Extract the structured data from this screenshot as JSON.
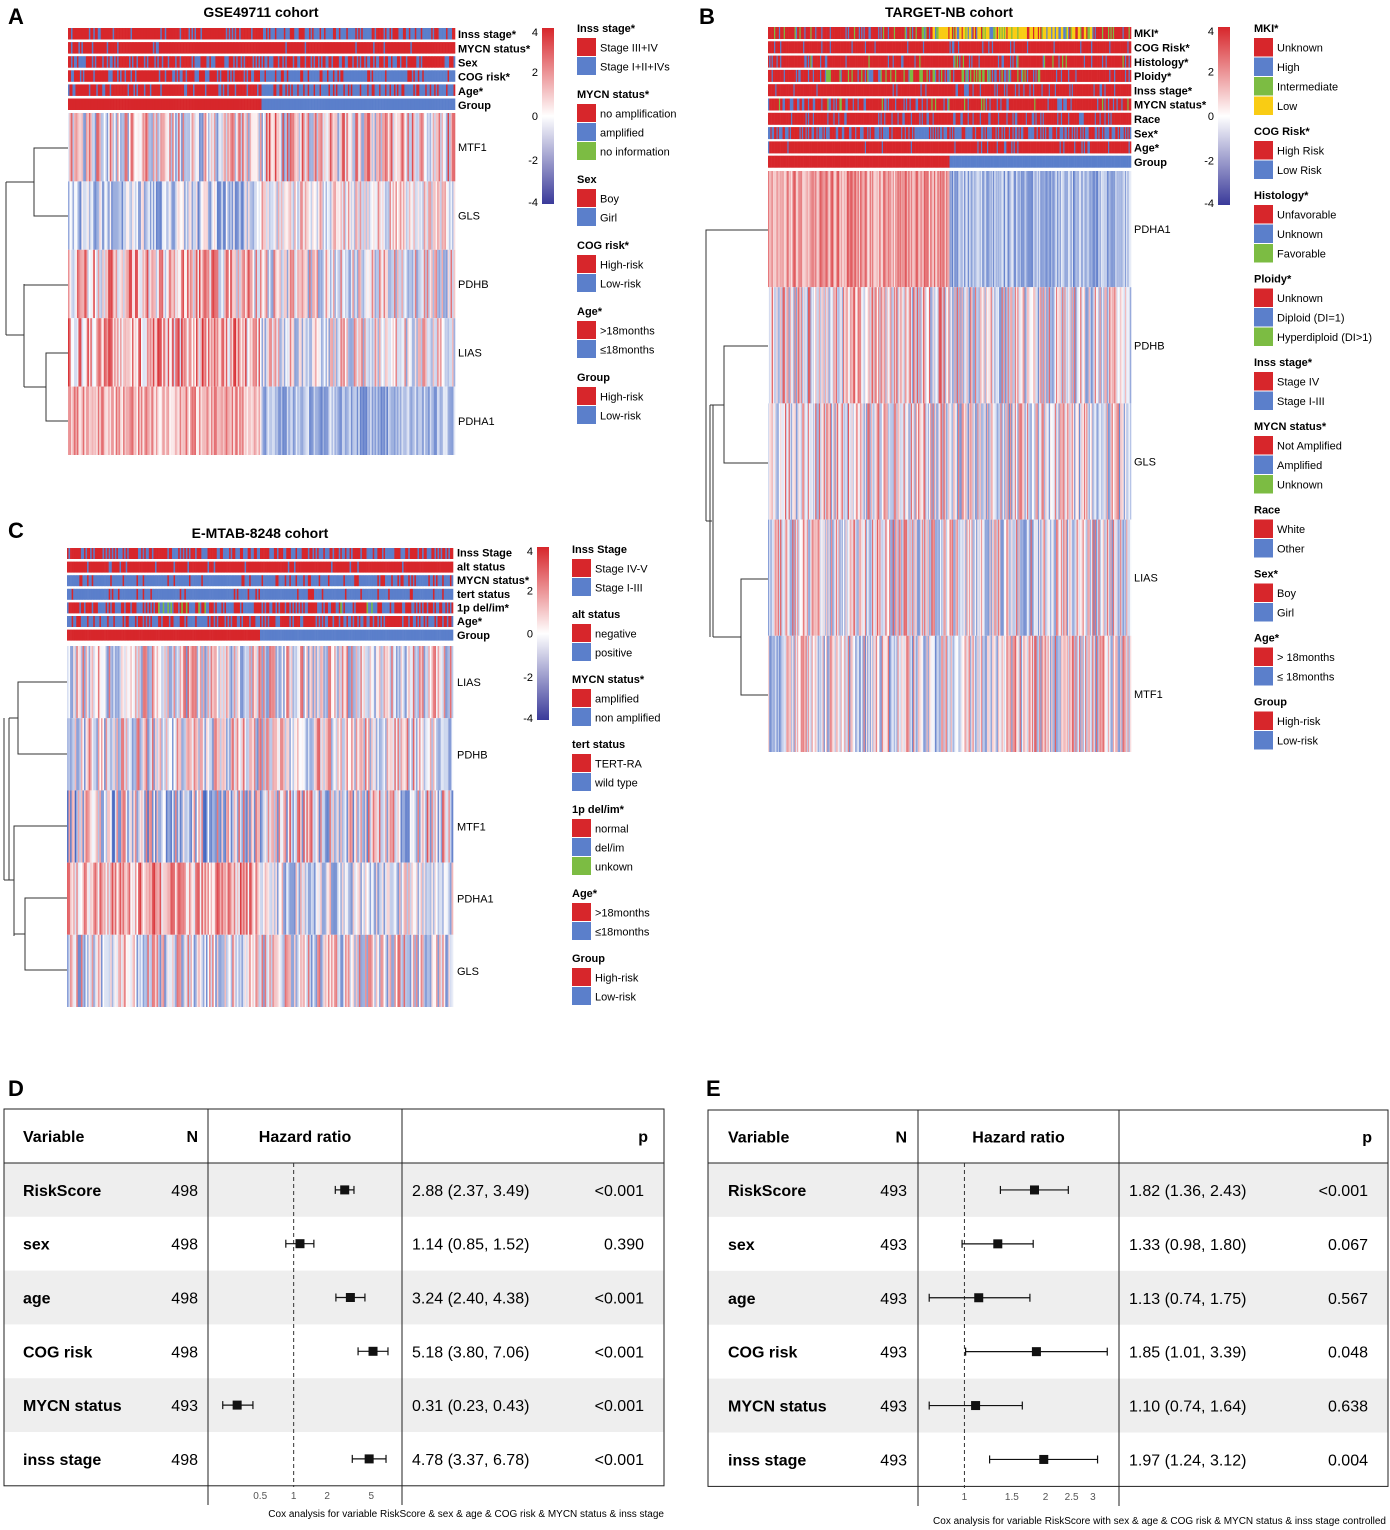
{
  "panels": {
    "A": {
      "letter": "A",
      "title": "GSE49711 cohort",
      "annotations": [
        "Inss stage*",
        "MYCN status*",
        "Sex",
        "COG risk*",
        "Age*",
        "Group"
      ],
      "genes": [
        "MTF1",
        "GLS",
        "PDHB",
        "LIAS",
        "PDHA1"
      ],
      "scale_ticks": [
        "4",
        "2",
        "0",
        "-2",
        "-4"
      ],
      "legend": [
        {
          "title": "Inss stage*",
          "items": [
            {
              "label": "Stage III+IV",
              "color": "#d7262b"
            },
            {
              "label": "Stage I+II+IVs",
              "color": "#5b7fcb"
            }
          ]
        },
        {
          "title": "MYCN status*",
          "items": [
            {
              "label": "no amplification",
              "color": "#d7262b"
            },
            {
              "label": "amplified",
              "color": "#5b7fcb"
            },
            {
              "label": "no information",
              "color": "#7cbc43"
            }
          ]
        },
        {
          "title": "Sex",
          "items": [
            {
              "label": "Boy",
              "color": "#d7262b"
            },
            {
              "label": "Girl",
              "color": "#5b7fcb"
            }
          ]
        },
        {
          "title": "COG risk*",
          "items": [
            {
              "label": "High-risk",
              "color": "#d7262b"
            },
            {
              "label": "Low-risk",
              "color": "#5b7fcb"
            }
          ]
        },
        {
          "title": "Age*",
          "items": [
            {
              "label": ">18months",
              "color": "#d7262b"
            },
            {
              "label": "≤18months",
              "color": "#5b7fcb"
            }
          ]
        },
        {
          "title": "Group",
          "items": [
            {
              "label": "High-risk",
              "color": "#d7262b"
            },
            {
              "label": "Low-risk",
              "color": "#5b7fcb"
            }
          ]
        }
      ]
    },
    "B": {
      "letter": "B",
      "title": "TARGET-NB cohort",
      "annotations": [
        "MKI*",
        "COG Risk*",
        "Histology*",
        "Ploidy*",
        "Inss stage*",
        "MYCN status*",
        "Race",
        "Sex*",
        "Age*",
        "Group"
      ],
      "genes": [
        "PDHA1",
        "PDHB",
        "GLS",
        "LIAS",
        "MTF1"
      ],
      "scale_ticks": [
        "4",
        "2",
        "0",
        "-2",
        "-4"
      ],
      "legend": [
        {
          "title": "MKI*",
          "items": [
            {
              "label": "Unknown",
              "color": "#d7262b"
            },
            {
              "label": "High",
              "color": "#5b7fcb"
            },
            {
              "label": "Intermediate",
              "color": "#7cbc43"
            },
            {
              "label": "Low",
              "color": "#f9cc14"
            }
          ]
        },
        {
          "title": "COG Risk*",
          "items": [
            {
              "label": "High Risk",
              "color": "#d7262b"
            },
            {
              "label": "Low Risk",
              "color": "#5b7fcb"
            }
          ]
        },
        {
          "title": "Histology*",
          "items": [
            {
              "label": "Unfavorable",
              "color": "#d7262b"
            },
            {
              "label": "Unknown",
              "color": "#5b7fcb"
            },
            {
              "label": "Favorable",
              "color": "#7cbc43"
            }
          ]
        },
        {
          "title": "Ploidy*",
          "items": [
            {
              "label": "Unknown",
              "color": "#d7262b"
            },
            {
              "label": "Diploid (DI=1)",
              "color": "#5b7fcb"
            },
            {
              "label": "Hyperdiploid (DI>1)",
              "color": "#7cbc43"
            }
          ]
        },
        {
          "title": "Inss stage*",
          "items": [
            {
              "label": "Stage IV",
              "color": "#d7262b"
            },
            {
              "label": "Stage I-III",
              "color": "#5b7fcb"
            }
          ]
        },
        {
          "title": "MYCN status*",
          "items": [
            {
              "label": "Not Amplified",
              "color": "#d7262b"
            },
            {
              "label": "Amplified",
              "color": "#5b7fcb"
            },
            {
              "label": "Unknown",
              "color": "#7cbc43"
            }
          ]
        },
        {
          "title": "Race",
          "items": [
            {
              "label": "White",
              "color": "#d7262b"
            },
            {
              "label": "Other",
              "color": "#5b7fcb"
            }
          ]
        },
        {
          "title": "Sex*",
          "items": [
            {
              "label": "Boy",
              "color": "#d7262b"
            },
            {
              "label": "Girl",
              "color": "#5b7fcb"
            }
          ]
        },
        {
          "title": "Age*",
          "items": [
            {
              "label": "> 18months",
              "color": "#d7262b"
            },
            {
              "label": "≤ 18months",
              "color": "#5b7fcb"
            }
          ]
        },
        {
          "title": "Group",
          "items": [
            {
              "label": "High-risk",
              "color": "#d7262b"
            },
            {
              "label": "Low-risk",
              "color": "#5b7fcb"
            }
          ]
        }
      ]
    },
    "C": {
      "letter": "C",
      "title": "E-MTAB-8248 cohort",
      "annotations": [
        "Inss Stage",
        "alt status",
        "MYCN status*",
        "tert status",
        "1p del/im*",
        "Age*",
        "Group"
      ],
      "genes": [
        "LIAS",
        "PDHB",
        "MTF1",
        "PDHA1",
        "GLS"
      ],
      "scale_ticks": [
        "4",
        "2",
        "0",
        "-2",
        "-4"
      ],
      "legend": [
        {
          "title": "Inss Stage",
          "items": [
            {
              "label": "Stage IV-V",
              "color": "#d7262b"
            },
            {
              "label": "Stage I-III",
              "color": "#5b7fcb"
            }
          ]
        },
        {
          "title": "alt status",
          "items": [
            {
              "label": "negative",
              "color": "#d7262b"
            },
            {
              "label": "positive",
              "color": "#5b7fcb"
            }
          ]
        },
        {
          "title": "MYCN status*",
          "items": [
            {
              "label": "amplified",
              "color": "#d7262b"
            },
            {
              "label": "non amplified",
              "color": "#5b7fcb"
            }
          ]
        },
        {
          "title": "tert status",
          "items": [
            {
              "label": "TERT-RA",
              "color": "#d7262b"
            },
            {
              "label": "wild type",
              "color": "#5b7fcb"
            }
          ]
        },
        {
          "title": "1p del/im*",
          "items": [
            {
              "label": "normal",
              "color": "#d7262b"
            },
            {
              "label": "del/im",
              "color": "#5b7fcb"
            },
            {
              "label": "unkown",
              "color": "#7cbc43"
            }
          ]
        },
        {
          "title": "Age*",
          "items": [
            {
              "label": ">18months",
              "color": "#d7262b"
            },
            {
              "label": "≤18months",
              "color": "#5b7fcb"
            }
          ]
        },
        {
          "title": "Group",
          "items": [
            {
              "label": "High-risk",
              "color": "#d7262b"
            },
            {
              "label": "Low-risk",
              "color": "#5b7fcb"
            }
          ]
        }
      ]
    }
  },
  "chart_data": [
    {
      "type": "forest",
      "panel": "D",
      "headers": {
        "variable": "Variable",
        "n": "N",
        "hr": "Hazard ratio",
        "p": "p"
      },
      "scale": "log",
      "xlim": [
        0.2,
        8
      ],
      "reference_line": 1,
      "ticks": [
        0.5,
        1,
        2,
        5
      ],
      "tick_labels": [
        "0.5",
        "1",
        "2",
        "5"
      ],
      "caption": "Cox analysis for variable RiskScore & sex & age & COG risk & MYCN status & inss stage",
      "rows": [
        {
          "variable": "RiskScore",
          "n": "498",
          "hr": 2.88,
          "lo": 2.37,
          "hi": 3.49,
          "ci_text": "2.88 (2.37, 3.49)",
          "p": "<0.001"
        },
        {
          "variable": "sex",
          "n": "498",
          "hr": 1.14,
          "lo": 0.85,
          "hi": 1.52,
          "ci_text": "1.14 (0.85, 1.52)",
          "p": "0.390"
        },
        {
          "variable": "age",
          "n": "498",
          "hr": 3.24,
          "lo": 2.4,
          "hi": 4.38,
          "ci_text": "3.24 (2.40, 4.38)",
          "p": "<0.001"
        },
        {
          "variable": "COG risk",
          "n": "498",
          "hr": 5.18,
          "lo": 3.8,
          "hi": 7.06,
          "ci_text": "5.18 (3.80, 7.06)",
          "p": "<0.001"
        },
        {
          "variable": "MYCN status",
          "n": "493",
          "hr": 0.31,
          "lo": 0.23,
          "hi": 0.43,
          "ci_text": "0.31 (0.23, 0.43)",
          "p": "<0.001"
        },
        {
          "variable": "inss stage",
          "n": "498",
          "hr": 4.78,
          "lo": 3.37,
          "hi": 6.78,
          "ci_text": "4.78 (3.37, 6.78)",
          "p": "<0.001"
        }
      ]
    },
    {
      "type": "forest",
      "panel": "E",
      "headers": {
        "variable": "Variable",
        "n": "N",
        "hr": "Hazard ratio",
        "p": "p"
      },
      "scale": "log",
      "xlim": [
        0.72,
        3.5
      ],
      "reference_line": 1,
      "ticks": [
        1,
        1.5,
        2,
        2.5,
        3
      ],
      "tick_labels": [
        "1",
        "1.5",
        "2",
        "2.5",
        "3"
      ],
      "caption": "Cox analysis for variable RiskScore with sex & age & COG risk & MYCN status & inss stage controlled",
      "rows": [
        {
          "variable": "RiskScore",
          "n": "493",
          "hr": 1.82,
          "lo": 1.36,
          "hi": 2.43,
          "ci_text": "1.82 (1.36, 2.43)",
          "p": "<0.001"
        },
        {
          "variable": "sex",
          "n": "493",
          "hr": 1.33,
          "lo": 0.98,
          "hi": 1.8,
          "ci_text": "1.33 (0.98, 1.80)",
          "p": "0.067"
        },
        {
          "variable": "age",
          "n": "493",
          "hr": 1.13,
          "lo": 0.74,
          "hi": 1.75,
          "ci_text": "1.13 (0.74, 1.75)",
          "p": "0.567"
        },
        {
          "variable": "COG risk",
          "n": "493",
          "hr": 1.85,
          "lo": 1.01,
          "hi": 3.39,
          "ci_text": "1.85 (1.01, 3.39)",
          "p": "0.048"
        },
        {
          "variable": "MYCN status",
          "n": "493",
          "hr": 1.1,
          "lo": 0.74,
          "hi": 1.64,
          "ci_text": "1.10 (0.74, 1.64)",
          "p": "0.638"
        },
        {
          "variable": "inss stage",
          "n": "493",
          "hr": 1.97,
          "lo": 1.24,
          "hi": 3.12,
          "ci_text": "1.97 (1.24, 3.12)",
          "p": "0.004"
        }
      ]
    }
  ],
  "panel_letters": {
    "D": "D",
    "E": "E"
  }
}
